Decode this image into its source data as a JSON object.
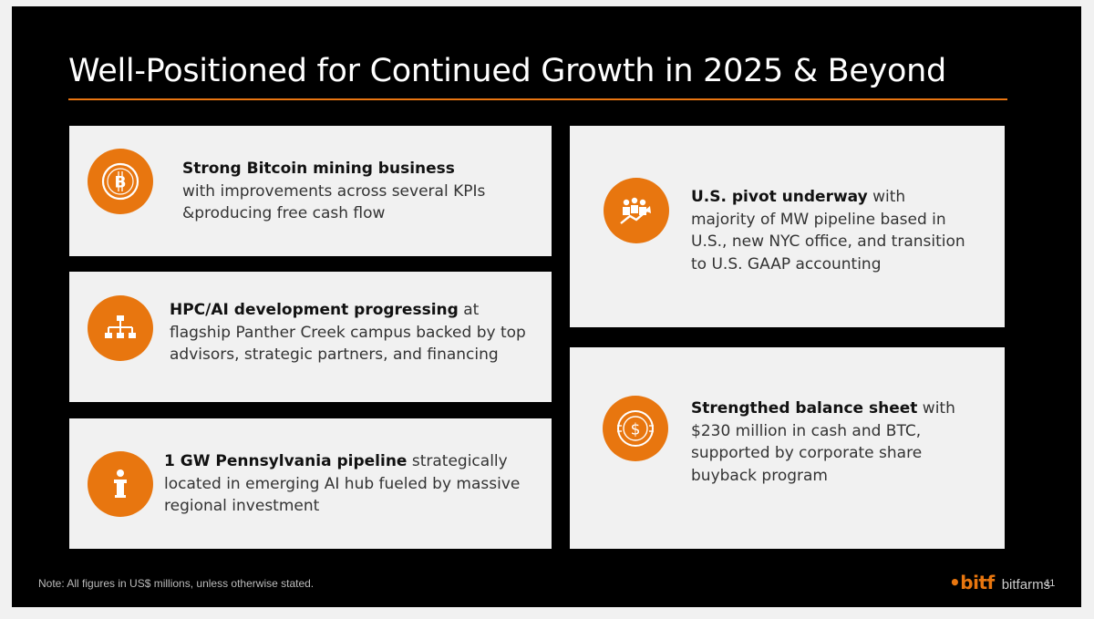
{
  "title": "Well-Positioned for Continued Growth in 2025 & Beyond",
  "cards": [
    {
      "bold": "Strong Bitcoin mining business",
      "line1_rest": "",
      "lines": [
        "with improvements across several KPIs",
        "&producing free cash flow"
      ],
      "icon": "bitcoin-icon"
    },
    {
      "bold": "HPC/AI development progressing",
      "line1_rest": " at",
      "lines": [
        "flagship Panther Creek campus backed by top",
        "advisors, strategic partners, and financing"
      ],
      "icon": "org-chart-icon"
    },
    {
      "bold": "1 GW Pennsylvania pipeline",
      "line1_rest": " strategically",
      "lines": [
        "located in emerging AI hub fueled by massive",
        "regional investment"
      ],
      "icon": "speaker-podium-icon"
    },
    {
      "bold": "U.S. pivot underway",
      "line1_rest": " with",
      "lines": [
        "majority of MW pipeline based in",
        "U.S., new NYC office, and transition",
        "to U.S. GAAP accounting"
      ],
      "icon": "growth-team-icon"
    },
    {
      "bold": "Strengthed balance sheet",
      "line1_rest": " with",
      "lines": [
        "$230 million in cash and BTC,",
        "supported by corporate share",
        "buyback program"
      ],
      "icon": "dollar-coin-icon"
    }
  ],
  "footer": {
    "note": "Note: All figures in US$ millions, unless otherwise stated.",
    "logo_mark": "•bitf",
    "logo_word": "bitfarms",
    "page_number": "11"
  },
  "colors": {
    "accent": "#e8760f",
    "background": "#000000",
    "card": "#f1f1f1"
  }
}
